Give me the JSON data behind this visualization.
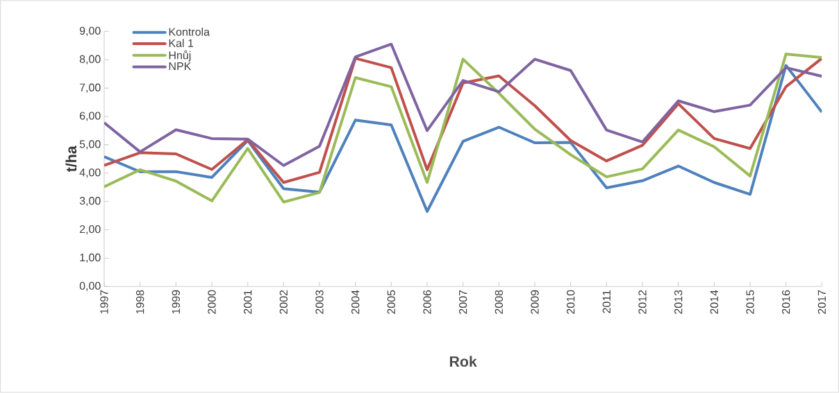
{
  "chart_data": {
    "type": "line",
    "xlabel": "Rok",
    "ylabel": "t/ha",
    "categories": [
      "1997",
      "1998",
      "1999",
      "2000",
      "2001",
      "2002",
      "2003",
      "2004",
      "2005",
      "2006",
      "2007",
      "2008",
      "2009",
      "2010",
      "2011",
      "2012",
      "2013",
      "2014",
      "2015",
      "2016",
      "2017"
    ],
    "series": [
      {
        "name": "Kontrola",
        "color": "#4f81bd",
        "values": [
          4.58,
          4.05,
          4.05,
          3.85,
          5.15,
          3.45,
          3.33,
          5.87,
          5.7,
          2.65,
          5.12,
          5.62,
          5.07,
          5.08,
          3.48,
          3.73,
          4.25,
          3.67,
          3.25,
          7.8,
          6.15
        ]
      },
      {
        "name": "Kal 1",
        "color": "#c0504d",
        "values": [
          4.27,
          4.72,
          4.68,
          4.13,
          5.18,
          3.67,
          4.03,
          8.05,
          7.72,
          4.12,
          7.18,
          7.43,
          6.38,
          5.15,
          4.43,
          4.98,
          6.45,
          5.22,
          4.87,
          7.05,
          8.05
        ]
      },
      {
        "name": "Hnůj",
        "color": "#9bbb59",
        "values": [
          3.52,
          4.12,
          3.72,
          3.02,
          4.87,
          2.98,
          3.32,
          7.37,
          7.05,
          3.67,
          8.02,
          6.82,
          5.55,
          4.65,
          3.87,
          4.15,
          5.52,
          4.93,
          3.9,
          8.2,
          8.08
        ]
      },
      {
        "name": "NPK",
        "color": "#8064a2",
        "values": [
          5.78,
          4.75,
          5.53,
          5.22,
          5.2,
          4.27,
          4.95,
          8.1,
          8.55,
          5.5,
          7.27,
          6.87,
          8.02,
          7.62,
          5.52,
          5.1,
          6.55,
          6.17,
          6.4,
          7.72,
          7.42
        ]
      }
    ],
    "ylim": [
      0,
      9
    ],
    "yticks": [
      {
        "value": 0,
        "label": "0,00"
      },
      {
        "value": 1,
        "label": "1,00"
      },
      {
        "value": 2,
        "label": "2,00"
      },
      {
        "value": 3,
        "label": "3,00"
      },
      {
        "value": 4,
        "label": "4,00"
      },
      {
        "value": 5,
        "label": "5,00"
      },
      {
        "value": 6,
        "label": "6,00"
      },
      {
        "value": 7,
        "label": "7,00"
      },
      {
        "value": 8,
        "label": "8,00"
      },
      {
        "value": 9,
        "label": "9,00"
      }
    ],
    "grid": false,
    "legend": "top left",
    "marker": "none",
    "line_style": "solid"
  }
}
